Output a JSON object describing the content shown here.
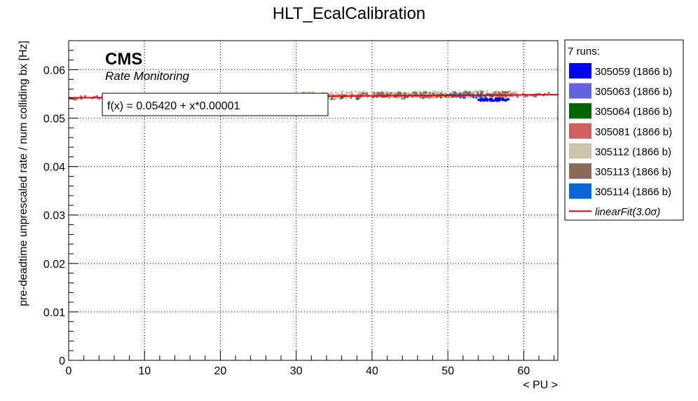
{
  "chart_data": {
    "type": "scatter",
    "title": "HLT_EcalCalibration",
    "xlabel": "< PU >",
    "ylabel": "pre-deadtime unprescaled rate / num colliding bx [Hz]",
    "xlim": [
      0,
      64.5
    ],
    "ylim": [
      0,
      0.066
    ],
    "x_ticks": [
      0,
      10,
      20,
      30,
      40,
      50,
      60
    ],
    "y_ticks": [
      0,
      0.01,
      0.02,
      0.03,
      0.04,
      0.05,
      0.06
    ],
    "x_tick_labels": [
      "0",
      "10",
      "20",
      "30",
      "40",
      "50",
      "60"
    ],
    "y_tick_labels": [
      "0",
      "0.01",
      "0.02",
      "0.03",
      "0.04",
      "0.05",
      "0.06"
    ],
    "grid": true,
    "legend_position": "right",
    "legend_header": "7 runs:",
    "branding": {
      "cms": "CMS",
      "subtitle": "Rate Monitoring"
    },
    "fit": {
      "label": "f(x) = 0.05420 + x*0.00001",
      "intercept": 0.0542,
      "slope": 1e-05,
      "x_range": [
        0,
        64.5
      ],
      "color": "#e8000b",
      "legend_label": "linearFit(3.0σ)"
    },
    "series": [
      {
        "name": "305059 (1866 b)",
        "color": "#0000ee",
        "x_range": [
          54,
          58
        ],
        "y_offsets": [
          -0.0006,
          -0.0012
        ],
        "points": 55
      },
      {
        "name": "305063 (1866 b)",
        "color": "#6464e0",
        "x_range": [
          43,
          56
        ],
        "y_offsets": [
          -0.0003,
          0.0003
        ],
        "points": 55
      },
      {
        "name": "305064 (1866 b)",
        "color": "#006400",
        "x_range": [
          30,
          55
        ],
        "y_offsets": [
          -0.0006,
          0.0003
        ],
        "points": 60
      },
      {
        "name": "305081 (1866 b)",
        "color": "#d06060",
        "x_range": [
          0,
          64
        ],
        "y_offsets": [
          -0.0004,
          0.0004
        ],
        "points": 250
      },
      {
        "name": "305112 (1866 b)",
        "color": "#ccc4aa",
        "x_range": [
          30,
          59
        ],
        "y_offsets": [
          -0.0004,
          0.0009
        ],
        "points": 300
      },
      {
        "name": "305113 (1866 b)",
        "color": "#8b6a58",
        "x_range": [
          38,
          58
        ],
        "y_offsets": [
          -0.0003,
          0.0007
        ],
        "points": 130
      },
      {
        "name": "305114 (1866 b)",
        "color": "#0a66d2",
        "x_range": [
          50,
          56
        ],
        "y_offsets": [
          -0.0005,
          0.0002
        ],
        "points": 25
      }
    ]
  }
}
